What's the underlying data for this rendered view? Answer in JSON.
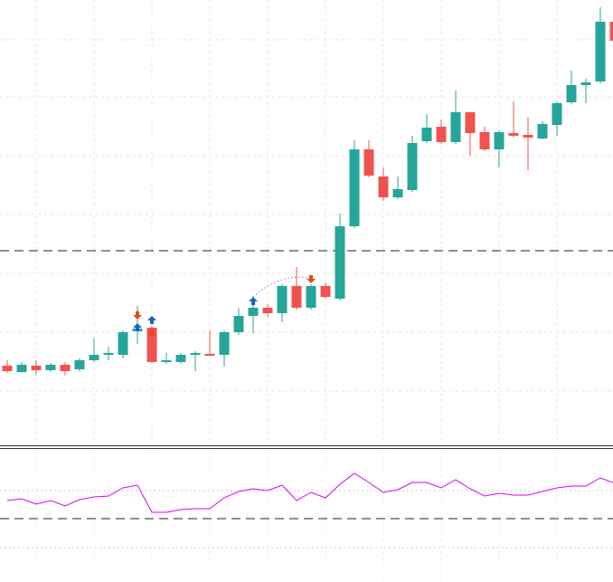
{
  "chart_data": [
    {
      "type": "candlestick",
      "color_up": "#26a69a",
      "color_down": "#ef5350",
      "open": [
        86,
        79,
        86,
        81,
        87,
        82,
        92,
        98,
        98,
        124,
        128,
        90,
        90,
        98,
        99,
        98,
        123,
        141,
        150,
        144,
        174,
        150,
        174,
        160,
        240,
        325,
        295,
        272,
        280,
        334,
        350,
        333,
        366,
        344,
        325,
        343,
        341,
        337,
        352,
        377,
        396,
        400,
        466
      ],
      "high": [
        92,
        90,
        92,
        89,
        90,
        94,
        116,
        107,
        125,
        152,
        130,
        100,
        100,
        102,
        125,
        125,
        150,
        162,
        154,
        176,
        195,
        176,
        178,
        254,
        335,
        335,
        305,
        295,
        340,
        364,
        358,
        390,
        366,
        350,
        346,
        378,
        360,
        356,
        378,
        412,
        403,
        482,
        470
      ],
      "low": [
        78,
        78,
        76,
        79,
        75,
        80,
        90,
        92,
        94,
        110,
        89,
        88,
        88,
        80,
        97,
        85,
        120,
        122,
        140,
        134,
        148,
        148,
        160,
        158,
        238,
        294,
        268,
        270,
        278,
        332,
        331,
        331,
        318,
        323,
        305,
        338,
        302,
        336,
        340,
        375,
        376,
        398,
        443
      ],
      "close": [
        80,
        87,
        81,
        87,
        80,
        92,
        98,
        100,
        123,
        127,
        90,
        92,
        98,
        100,
        97,
        123,
        141,
        150,
        144,
        174,
        150,
        174,
        162,
        240,
        325,
        296,
        272,
        281,
        332,
        349,
        333,
        366,
        343,
        325,
        344,
        340,
        338,
        353,
        376,
        396,
        399,
        466,
        445
      ],
      "ylim": [
        0,
        490
      ],
      "yticks": [
        58,
        123,
        188,
        253,
        318,
        383,
        446
      ],
      "xticks": [
        2,
        6,
        10,
        14,
        18,
        22,
        26,
        30,
        34,
        38,
        42
      ],
      "grid": true,
      "hline": 213,
      "buy_signals": [
        {
          "index": 9,
          "value": 128,
          "color": "#1565c0"
        },
        {
          "index": 10,
          "value": 136,
          "color": "#1565c0"
        },
        {
          "index": 17,
          "value": 157,
          "color": "#1565c0"
        }
      ],
      "sell_signals": [
        {
          "index": 9,
          "value": 142,
          "color": "#e64a19"
        },
        {
          "index": 10,
          "value": 122,
          "color": "#e64a19"
        },
        {
          "index": 21,
          "value": 182,
          "color": "#e64a19"
        }
      ]
    },
    {
      "type": "line",
      "color": "#d500f9",
      "values": [
        90,
        92,
        86,
        90,
        84,
        91,
        94,
        95,
        104,
        107,
        77,
        77,
        80,
        81,
        81,
        93,
        100,
        103,
        101,
        107,
        90,
        99,
        93,
        108,
        120,
        110,
        99,
        102,
        110,
        110,
        104,
        113,
        103,
        95,
        98,
        96,
        96,
        100,
        104,
        106,
        106,
        115,
        109
      ],
      "ylim": [
        0,
        148
      ],
      "yticks": [
        38,
        101
      ],
      "xticks": [
        2,
        6,
        10,
        14,
        18,
        22,
        26,
        30,
        34,
        38,
        42
      ],
      "grid": true,
      "hline": 70
    }
  ]
}
